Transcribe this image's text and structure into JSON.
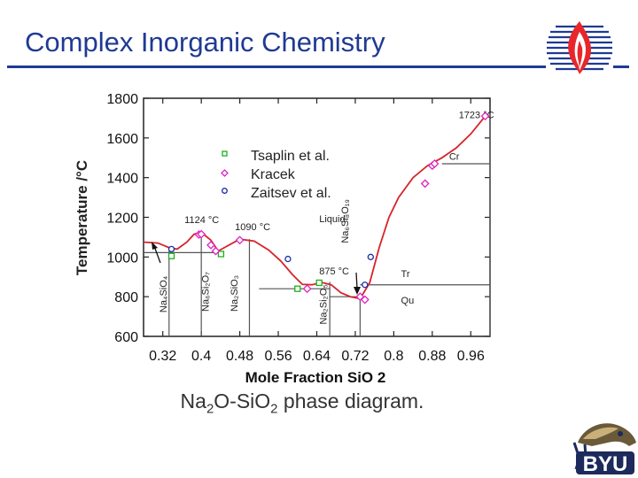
{
  "header": {
    "title": "Complex Inorganic Chemistry"
  },
  "caption": {
    "part1": "Na",
    "sub1": "2",
    "part2": "O-SiO",
    "sub2": "2",
    "part3": " phase diagram."
  },
  "colors": {
    "title": "#1f3a93",
    "curve": "#d8232a",
    "tsaplin": "#1ab01a",
    "kracek": "#e020c0",
    "zaitsev": "#1a2ea8",
    "phase_line": "#555555"
  },
  "icons": {
    "top_logo": "flame-logo-icon",
    "bottom_logo": "byu-cougar-logo-icon"
  },
  "chart_data": {
    "type": "scatter",
    "xlabel": "Mole Fraction SiO 2",
    "ylabel": "Temperature /°C",
    "xlim": [
      0.28,
      1.0
    ],
    "ylim": [
      600,
      1800
    ],
    "xticks": [
      "0.32",
      "0.4",
      "0.48",
      "0.56",
      "0.64",
      "0.72",
      "0.8",
      "0.88",
      "0.96"
    ],
    "yticks": [
      "600",
      "800",
      "1000",
      "1200",
      "1400",
      "1600",
      "1800"
    ],
    "grid": false,
    "legend_position": "top-center",
    "series": [
      {
        "name": "Tsaplin et al.",
        "marker": "square",
        "x": [
          0.338,
          0.441,
          0.6,
          0.645
        ],
        "y": [
          1005,
          1015,
          840,
          870
        ]
      },
      {
        "name": "Kracek",
        "marker": "diamond",
        "x": [
          0.395,
          0.4,
          0.42,
          0.43,
          0.48,
          0.62,
          0.73,
          0.74,
          0.865,
          0.88,
          0.885,
          0.99
        ],
        "y": [
          1113,
          1115,
          1060,
          1030,
          1085,
          840,
          800,
          785,
          1370,
          1460,
          1470,
          1710
        ]
      },
      {
        "name": "Zaitsev et al.",
        "marker": "circle",
        "x": [
          0.338,
          0.58,
          0.74,
          0.752
        ],
        "y": [
          1040,
          990,
          860,
          1000
        ]
      }
    ],
    "liquidus_curve": {
      "x": [
        0.28,
        0.31,
        0.335,
        0.35,
        0.37,
        0.385,
        0.4,
        0.42,
        0.435,
        0.45,
        0.48,
        0.51,
        0.54,
        0.565,
        0.59,
        0.61,
        0.63,
        0.65,
        0.67,
        0.69,
        0.71,
        0.73,
        0.75,
        0.77,
        0.79,
        0.81,
        0.84,
        0.87,
        0.9,
        0.93,
        0.96,
        0.99
      ],
      "y": [
        1075,
        1070,
        1045,
        1040,
        1075,
        1115,
        1124,
        1085,
        1030,
        1050,
        1090,
        1080,
        1035,
        980,
        910,
        862,
        860,
        872,
        860,
        820,
        800,
        790,
        870,
        1050,
        1200,
        1300,
        1400,
        1460,
        1500,
        1550,
        1620,
        1710
      ]
    },
    "phase_lines": {
      "vertical": [
        {
          "x": 0.333,
          "y0": 600,
          "y1": 1030
        },
        {
          "x": 0.4,
          "y0": 600,
          "y1": 1124
        },
        {
          "x": 0.5,
          "y0": 600,
          "y1": 1090
        },
        {
          "x": 0.667,
          "y0": 600,
          "y1": 875
        },
        {
          "x": 0.73,
          "y0": 600,
          "y1": 800
        },
        {
          "x": 1.0,
          "y0": 600,
          "y1": 1723
        }
      ],
      "horizontal": [
        {
          "y": 1022,
          "x0": 0.28,
          "x1": 0.44
        },
        {
          "y": 840,
          "x0": 0.52,
          "x1": 0.667
        },
        {
          "y": 800,
          "x0": 0.667,
          "x1": 0.73
        },
        {
          "y": 860,
          "x0": 0.73,
          "x1": 1.0
        },
        {
          "y": 1470,
          "x0": 0.9,
          "x1": 1.0
        }
      ]
    },
    "annotations": [
      {
        "text": "1723 °C",
        "x": 0.935,
        "y": 1700,
        "angle": 0
      },
      {
        "text": "1124 °C",
        "x": 0.365,
        "y": 1170,
        "angle": 0
      },
      {
        "text": "1090 °C",
        "x": 0.47,
        "y": 1135,
        "angle": 0
      },
      {
        "text": "875 °C",
        "x": 0.645,
        "y": 913,
        "angle": 0
      },
      {
        "text": "Liquid",
        "x": 0.645,
        "y": 1175,
        "angle": 0
      },
      {
        "text": "Cr",
        "x": 0.915,
        "y": 1490,
        "angle": 0
      },
      {
        "text": "Tr",
        "x": 0.815,
        "y": 898,
        "angle": 0
      },
      {
        "text": "Qu",
        "x": 0.815,
        "y": 765,
        "angle": 0
      },
      {
        "text": "Na₄SiO₄",
        "x": 0.328,
        "y": 720,
        "angle": -90
      },
      {
        "text": "Na₆Si₂O₇",
        "x": 0.415,
        "y": 725,
        "angle": -90
      },
      {
        "text": "Na₂SiO₃",
        "x": 0.475,
        "y": 725,
        "angle": -90
      },
      {
        "text": "Na₂Si₂O₅",
        "x": 0.66,
        "y": 660,
        "angle": -90
      },
      {
        "text": "Na₆Si₈O₁₉",
        "x": 0.705,
        "y": 1070,
        "angle": -90
      }
    ]
  }
}
